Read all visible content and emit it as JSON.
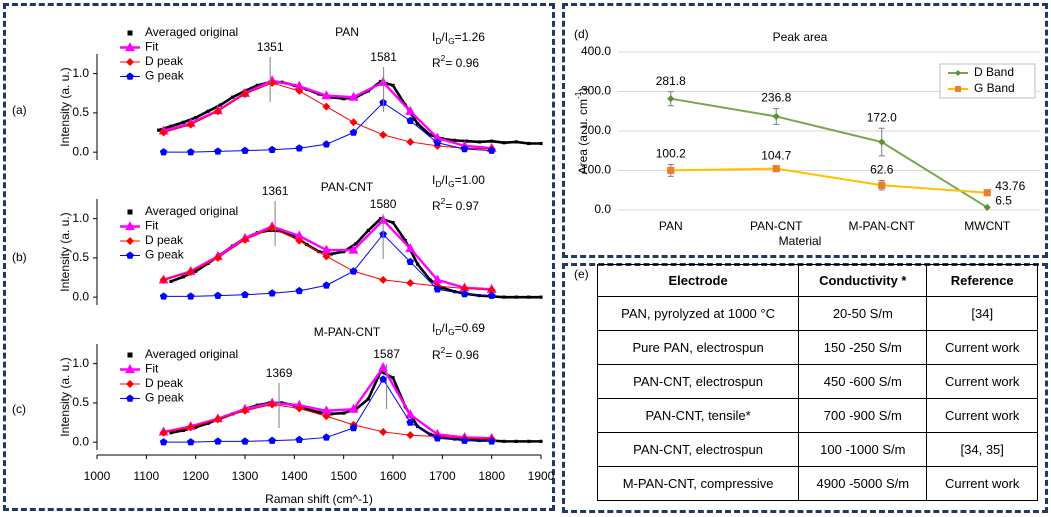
{
  "chart_data": [
    {
      "type": "line",
      "panel_label": "(a)",
      "title": "PAN",
      "ylabel": "Intensity (a. u.)",
      "xlim": [
        1000,
        1900
      ],
      "ylim": [
        -0.1,
        1.25
      ],
      "yticks": [
        {
          "value": 0,
          "label": "0.0"
        },
        0.5,
        {
          "value": 1,
          "label": "1.0"
        }
      ],
      "peak_labels": [
        1351,
        1581
      ],
      "ratio": [
        {
          "text": "I"
        },
        {
          "text": "D",
          "shift": "sub"
        },
        {
          "text": "/I"
        },
        {
          "text": "G",
          "shift": "sub"
        },
        {
          "text": "=1.26"
        }
      ],
      "fit_quality": [
        {
          "text": "R"
        },
        {
          "text": "2",
          "shift": "super"
        },
        {
          "text": "= 0.96"
        }
      ],
      "series": [
        {
          "name": "Averaged original",
          "color": "#000000",
          "marker": "square",
          "x": [
            1125,
            1150,
            1175,
            1200,
            1225,
            1250,
            1275,
            1300,
            1325,
            1350,
            1375,
            1400,
            1425,
            1450,
            1475,
            1500,
            1525,
            1550,
            1575,
            1600,
            1625,
            1650,
            1675,
            1700,
            1725,
            1750,
            1775,
            1800,
            1825,
            1850,
            1875,
            1900
          ],
          "values": [
            0.28,
            0.33,
            0.38,
            0.44,
            0.52,
            0.6,
            0.7,
            0.78,
            0.85,
            0.89,
            0.89,
            0.85,
            0.8,
            0.74,
            0.7,
            0.68,
            0.7,
            0.78,
            0.9,
            0.85,
            0.6,
            0.36,
            0.22,
            0.17,
            0.15,
            0.14,
            0.13,
            0.14,
            0.12,
            0.13,
            0.11,
            0.11
          ]
        },
        {
          "name": "Fit",
          "color": "#ff00ff",
          "marker": "triangle",
          "x": [
            1135,
            1190,
            1245,
            1300,
            1355,
            1410,
            1465,
            1520,
            1580,
            1635,
            1690,
            1745,
            1800
          ],
          "values": [
            0.27,
            0.37,
            0.53,
            0.75,
            0.91,
            0.84,
            0.72,
            0.7,
            0.89,
            0.52,
            0.18,
            0.08,
            0.05
          ]
        },
        {
          "name": "D peak",
          "color": "#ff0000",
          "marker": "diamond",
          "x": [
            1135,
            1190,
            1245,
            1300,
            1355,
            1410,
            1465,
            1520,
            1580,
            1635,
            1690,
            1745,
            1800
          ],
          "values": [
            0.25,
            0.35,
            0.52,
            0.74,
            0.88,
            0.78,
            0.58,
            0.38,
            0.22,
            0.13,
            0.08,
            0.05,
            0.04
          ]
        },
        {
          "name": "G peak",
          "color": "#0000ff",
          "marker": "pentagon",
          "x": [
            1135,
            1190,
            1245,
            1300,
            1355,
            1410,
            1465,
            1520,
            1580,
            1635,
            1690,
            1745,
            1800
          ],
          "values": [
            0,
            0,
            0.01,
            0.02,
            0.03,
            0.05,
            0.1,
            0.25,
            0.63,
            0.4,
            0.12,
            0.04,
            0.02
          ]
        }
      ]
    },
    {
      "type": "line",
      "panel_label": "(b)",
      "title": "PAN-CNT",
      "ylabel": "Intensity (a. u.)",
      "xlim": [
        1000,
        1900
      ],
      "ylim": [
        -0.1,
        1.25
      ],
      "yticks": [
        {
          "value": 0,
          "label": "0.0"
        },
        0.5,
        {
          "value": 1,
          "label": "1.0"
        }
      ],
      "peak_labels": [
        1361,
        1580
      ],
      "ratio": [
        {
          "text": "I"
        },
        {
          "text": "D",
          "shift": "sub"
        },
        {
          "text": "/I"
        },
        {
          "text": "G",
          "shift": "sub"
        },
        {
          "text": "=1.00"
        }
      ],
      "fit_quality": [
        {
          "text": "R"
        },
        {
          "text": "2",
          "shift": "super"
        },
        {
          "text": "= 0.97"
        }
      ],
      "series": [
        {
          "name": "Averaged original",
          "color": "#000000",
          "marker": "square",
          "x": [
            1150,
            1175,
            1200,
            1225,
            1250,
            1275,
            1300,
            1325,
            1350,
            1375,
            1400,
            1425,
            1450,
            1475,
            1500,
            1525,
            1550,
            1575,
            1600,
            1625,
            1650,
            1675,
            1700,
            1725,
            1750,
            1775,
            1800,
            1825,
            1850,
            1875,
            1900
          ],
          "values": [
            0.2,
            0.26,
            0.33,
            0.43,
            0.54,
            0.65,
            0.75,
            0.82,
            0.85,
            0.84,
            0.78,
            0.67,
            0.58,
            0.55,
            0.58,
            0.68,
            0.85,
            1.0,
            0.95,
            0.72,
            0.42,
            0.22,
            0.12,
            0.07,
            0.04,
            0.02,
            0.01,
            0,
            0,
            0,
            0
          ]
        },
        {
          "name": "Fit",
          "color": "#ff00ff",
          "marker": "triangle",
          "x": [
            1135,
            1190,
            1245,
            1300,
            1355,
            1410,
            1465,
            1520,
            1580,
            1635,
            1690,
            1745,
            1800
          ],
          "values": [
            0.22,
            0.33,
            0.52,
            0.75,
            0.9,
            0.78,
            0.6,
            0.6,
            0.98,
            0.62,
            0.22,
            0.12,
            0.1
          ]
        },
        {
          "name": "D peak",
          "color": "#ff0000",
          "marker": "diamond",
          "x": [
            1135,
            1190,
            1245,
            1300,
            1355,
            1410,
            1465,
            1520,
            1580,
            1635,
            1690,
            1745,
            1800
          ],
          "values": [
            0.22,
            0.32,
            0.5,
            0.73,
            0.88,
            0.72,
            0.52,
            0.33,
            0.22,
            0.18,
            0.14,
            0.11,
            0.09
          ]
        },
        {
          "name": "G peak",
          "color": "#0000ff",
          "marker": "pentagon",
          "x": [
            1135,
            1190,
            1245,
            1300,
            1355,
            1410,
            1465,
            1520,
            1580,
            1635,
            1690,
            1745,
            1800
          ],
          "values": [
            0.01,
            0.01,
            0.02,
            0.03,
            0.05,
            0.08,
            0.15,
            0.33,
            0.8,
            0.45,
            0.1,
            0.04,
            0.02
          ]
        }
      ]
    },
    {
      "type": "line",
      "panel_label": "(c)",
      "title": "M-PAN-CNT",
      "ylabel": "Intensity (a. u.)",
      "xlabel": "Raman shift (cm^-1)",
      "xlim": [
        1000,
        1900
      ],
      "xticks": [
        1000,
        1100,
        1200,
        1300,
        1400,
        1500,
        1600,
        1700,
        1800,
        1900
      ],
      "ylim": [
        -0.1,
        1.25
      ],
      "yticks": [
        {
          "value": 0,
          "label": "0.0"
        },
        0.5,
        {
          "value": 1,
          "label": "1.0"
        }
      ],
      "peak_labels": [
        1369,
        1587
      ],
      "ratio": [
        {
          "text": "I"
        },
        {
          "text": "D",
          "shift": "sub"
        },
        {
          "text": "/I"
        },
        {
          "text": "G",
          "shift": "sub"
        },
        {
          "text": "=0.69"
        }
      ],
      "fit_quality": [
        {
          "text": "R"
        },
        {
          "text": "2",
          "shift": "super"
        },
        {
          "text": "= 0.96"
        }
      ],
      "series": [
        {
          "name": "Averaged original",
          "color": "#000000",
          "marker": "square",
          "x": [
            1150,
            1175,
            1200,
            1225,
            1250,
            1275,
            1300,
            1325,
            1350,
            1375,
            1400,
            1425,
            1450,
            1475,
            1500,
            1525,
            1550,
            1575,
            1600,
            1625,
            1650,
            1675,
            1700,
            1725,
            1750,
            1775,
            1800,
            1825,
            1850,
            1875,
            1900
          ],
          "values": [
            0.12,
            0.15,
            0.19,
            0.24,
            0.3,
            0.36,
            0.42,
            0.47,
            0.5,
            0.5,
            0.47,
            0.42,
            0.38,
            0.36,
            0.37,
            0.42,
            0.55,
            0.9,
            0.82,
            0.45,
            0.2,
            0.1,
            0.06,
            0.04,
            0.03,
            0.02,
            0.02,
            0.01,
            0.01,
            0.01,
            0.01
          ]
        },
        {
          "name": "Fit",
          "color": "#ff00ff",
          "marker": "triangle",
          "x": [
            1135,
            1190,
            1245,
            1300,
            1355,
            1410,
            1465,
            1520,
            1580,
            1635,
            1690,
            1745,
            1800
          ],
          "values": [
            0.13,
            0.2,
            0.3,
            0.42,
            0.5,
            0.47,
            0.4,
            0.42,
            0.95,
            0.35,
            0.1,
            0.06,
            0.05
          ]
        },
        {
          "name": "D peak",
          "color": "#ff0000",
          "marker": "diamond",
          "x": [
            1135,
            1190,
            1245,
            1300,
            1355,
            1410,
            1465,
            1520,
            1580,
            1635,
            1690,
            1745,
            1800
          ],
          "values": [
            0.12,
            0.19,
            0.29,
            0.4,
            0.48,
            0.43,
            0.33,
            0.22,
            0.13,
            0.09,
            0.07,
            0.05,
            0.04
          ]
        },
        {
          "name": "G peak",
          "color": "#0000ff",
          "marker": "pentagon",
          "x": [
            1135,
            1190,
            1245,
            1300,
            1355,
            1410,
            1465,
            1520,
            1580,
            1635,
            1690,
            1745,
            1800
          ],
          "values": [
            0,
            0,
            0.01,
            0.01,
            0.02,
            0.03,
            0.06,
            0.18,
            0.8,
            0.25,
            0.05,
            0.02,
            0.01
          ]
        }
      ]
    },
    {
      "type": "line",
      "panel_label": "(d)",
      "title": "Peak area",
      "xlabel": "Material",
      "ylabel": [
        {
          "text": "Area (a. u. cm"
        },
        {
          "text": "-1",
          "shift": "super"
        },
        {
          "text": ")"
        }
      ],
      "categories": [
        "PAN",
        "PAN-CNT",
        "M-PAN-CNT",
        "MWCNT"
      ],
      "ylim": [
        0,
        400
      ],
      "yticks": [
        {
          "value": 0,
          "label": "0.0"
        },
        {
          "value": 100,
          "label": "100.0"
        },
        {
          "value": 200,
          "label": "200.0"
        },
        {
          "value": 300,
          "label": "300.0"
        },
        {
          "value": 400,
          "label": "400.0"
        }
      ],
      "grid": true,
      "legend": "top-right",
      "series": [
        {
          "name": "D Band",
          "color": "#7aa64a",
          "marker_color": "#5e8f3a",
          "marker": "diamond",
          "values": [
            281.8,
            236.8,
            172.0,
            6.5
          ],
          "value_labels": [
            "281.8",
            "236.8",
            "172.0",
            "6.5"
          ],
          "errors": [
            18,
            20,
            35,
            0
          ]
        },
        {
          "name": "G Band",
          "color": "#ffc000",
          "marker_color": "#ed7d31",
          "marker": "square",
          "values": [
            100.2,
            104.7,
            62.6,
            43.76
          ],
          "value_labels": [
            "100.2",
            "104.7",
            "62.6",
            "43.76"
          ],
          "errors": [
            15,
            6,
            12,
            0
          ]
        }
      ]
    }
  ],
  "table": {
    "panel_label": "(e)",
    "header": [
      "Electrode",
      "Conductivity *",
      "Reference"
    ],
    "rows": [
      [
        "PAN, pyrolyzed at 1000 °C",
        "20-50 S/m",
        "[34]"
      ],
      [
        "Pure PAN, electrospun",
        "150 -250 S/m",
        "Current work"
      ],
      [
        "PAN-CNT, electrospun",
        "450 -600 S/m",
        "Current work"
      ],
      [
        "PAN-CNT, tensile*",
        "700 -900 S/m",
        "Current work"
      ],
      [
        "PAN-CNT, electrospun",
        "100 -1000 S/m",
        "[34, 35]"
      ],
      [
        "M-PAN-CNT, compressive",
        "4900 -5000 S/m",
        "Current work"
      ]
    ]
  }
}
